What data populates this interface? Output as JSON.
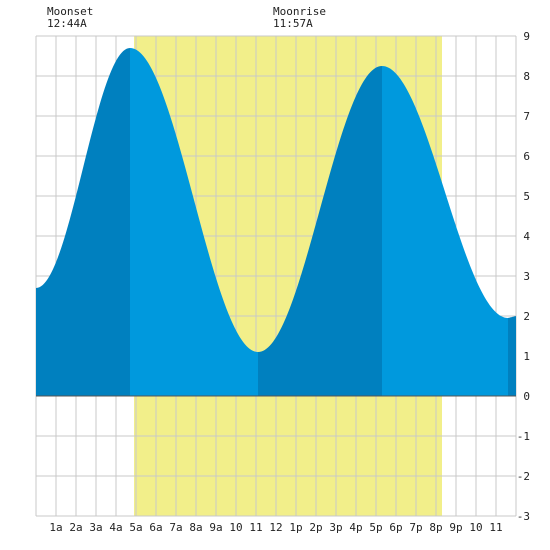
{
  "chart_data": {
    "type": "area",
    "title": "",
    "xlabel": "",
    "ylabel": "",
    "x_range_hours": [
      0,
      24
    ],
    "ylim": [
      -3,
      9
    ],
    "y_ticks": [
      9,
      8,
      7,
      6,
      5,
      4,
      3,
      2,
      1,
      0,
      -1,
      -2,
      -3
    ],
    "x_tick_labels": [
      "1a",
      "2a",
      "3a",
      "4a",
      "5a",
      "6a",
      "7a",
      "8a",
      "9a",
      "10",
      "11",
      "12",
      "1p",
      "2p",
      "3p",
      "4p",
      "5p",
      "6p",
      "7p",
      "8p",
      "9p",
      "10",
      "11"
    ],
    "grid": true,
    "daylight_band_hours": [
      4.9,
      20.3
    ],
    "tide_extremes": [
      {
        "hour": 0.0,
        "height": 2.7
      },
      {
        "hour": 4.7,
        "height": 8.7
      },
      {
        "hour": 11.1,
        "height": 1.1
      },
      {
        "hour": 17.3,
        "height": 8.25
      },
      {
        "hour": 23.6,
        "height": 1.95
      }
    ],
    "tide_end": {
      "hour": 24.0,
      "height": 2.0
    },
    "shading_boundaries_hours": [
      4.7,
      11.1,
      17.3,
      23.6
    ],
    "annotations": [
      {
        "label": "Moonset",
        "time": "12:44A"
      },
      {
        "label": "Moonrise",
        "time": "11:57A"
      }
    ]
  },
  "colors": {
    "background": "#ffffff",
    "daylight": "#f2ef8a",
    "grid": "#c8c8c8",
    "tide_dark": "#0080bf",
    "tide_light": "#0099dd",
    "axis_text": "#222222"
  }
}
